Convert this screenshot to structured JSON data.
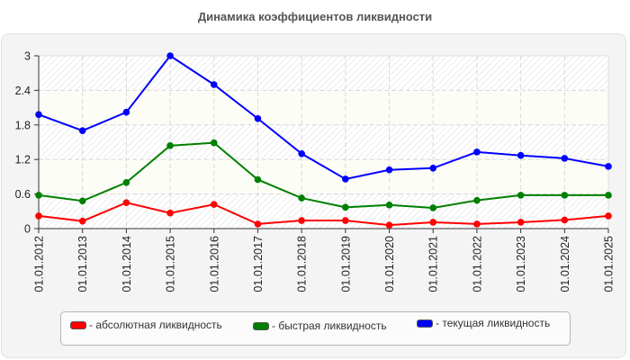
{
  "chart_data": {
    "type": "line",
    "title": "Динамика коэффициентов ликвидности",
    "xlabel": "",
    "ylabel": "",
    "ylim": [
      0,
      3
    ],
    "yticks": [
      "0",
      "0.6",
      "1.2",
      "1.8",
      "2.4",
      "3"
    ],
    "grid": true,
    "legend_position": "bottom",
    "categories": [
      "01.01.2012",
      "01.01.2013",
      "01.01.2014",
      "01.01.2015",
      "01.01.2016",
      "01.01.2017",
      "01.01.2018",
      "01.01.2019",
      "01.01.2020",
      "01.01.2021",
      "01.01.2022",
      "01.01.2023",
      "01.01.2024",
      "01.01.2025"
    ],
    "series": [
      {
        "name": "- абсолютная ликвидность",
        "color": "#ff0000",
        "values": [
          0.22,
          0.13,
          0.45,
          0.27,
          0.42,
          0.08,
          0.14,
          0.14,
          0.06,
          0.11,
          0.08,
          0.11,
          0.15,
          0.22
        ]
      },
      {
        "name": "- быстрая ликвидность",
        "color": "#008000",
        "values": [
          0.58,
          0.48,
          0.8,
          1.44,
          1.49,
          0.85,
          0.53,
          0.37,
          0.41,
          0.36,
          0.49,
          0.58,
          0.58,
          0.58
        ]
      },
      {
        "name": "- текущая ликвидность",
        "color": "#0000ff",
        "values": [
          1.98,
          1.7,
          2.02,
          3.0,
          2.5,
          1.91,
          1.3,
          0.86,
          1.02,
          1.05,
          1.33,
          1.27,
          1.22,
          1.08
        ]
      }
    ]
  }
}
